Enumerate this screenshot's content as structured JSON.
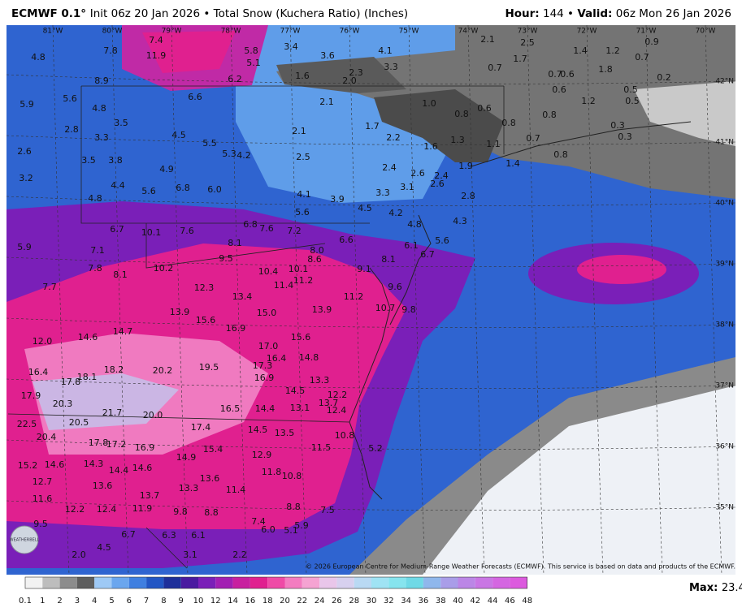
{
  "header": {
    "model": "ECMWF 0.1°",
    "init": "Init 06z 20 Jan 2026",
    "product": "Total Snow (Kuchera Ratio) (Inches)",
    "hour_label": "Hour:",
    "hour": "144",
    "valid_label": "Valid:",
    "valid": "06z Mon 26 Jan 2026"
  },
  "map": {
    "longitude_labels": [
      "81°W",
      "80°W",
      "79°W",
      "78°W",
      "77°W",
      "76°W",
      "75°W",
      "74°W",
      "73°W",
      "72°W",
      "71°W",
      "70°W"
    ],
    "latitude_labels": [
      "42°N",
      "41°N",
      "40°N",
      "39°N",
      "38°N",
      "37°N",
      "36°N",
      "35°N"
    ],
    "point_labels": [
      "4.8",
      "7.8",
      "7.4",
      "11.9",
      "8.9",
      "5.8",
      "5.1",
      "6.2",
      "3.4",
      "3.6",
      "4.1",
      "3.3",
      "1.6",
      "2.3",
      "2.0",
      "2.1",
      "2.5",
      "1.4",
      "1.2",
      "0.9",
      "0.7",
      "1.7",
      "0.7",
      "0.7",
      "0.6",
      "1.8",
      "0.2",
      "5.9",
      "5.6",
      "4.8",
      "6.6",
      "2.1",
      "1.0",
      "0.8",
      "0.6",
      "0.6",
      "1.2",
      "0.5",
      "0.8",
      "0.5",
      "3.5",
      "2.8",
      "3.3",
      "4.5",
      "2.1",
      "1.7",
      "0.8",
      "0.3",
      "2.6",
      "5.5",
      "5.3",
      "4.2",
      "2.5",
      "2.2",
      "1.6",
      "1.3",
      "1.1",
      "0.7",
      "0.8",
      "0.3",
      "3.5",
      "3.8",
      "4.9",
      "2.4",
      "2.6",
      "2.4",
      "1.9",
      "1.4",
      "3.2",
      "4.4",
      "5.6",
      "6.8",
      "6.0",
      "3.1",
      "2.6",
      "4.1",
      "3.9",
      "3.3",
      "2.8",
      "4.8",
      "4.5",
      "5.6",
      "4.2",
      "4.3",
      "4.8",
      "6.7",
      "10.1",
      "7.6",
      "6.8",
      "7.6",
      "7.2",
      "6.6",
      "5.6",
      "6.1",
      "5.9",
      "7.1",
      "8.1",
      "8.0",
      "6.7",
      "9.5",
      "8.6",
      "8.1",
      "7.8",
      "10.2",
      "8.1",
      "10.4",
      "10.1",
      "9.1",
      "11.2",
      "7.7",
      "12.3",
      "11.4",
      "9.6",
      "13.4",
      "11.2",
      "10.7",
      "9.8",
      "13.9",
      "15.0",
      "13.9",
      "15.6",
      "16.9",
      "14.7",
      "14.6",
      "12.0",
      "15.6",
      "17.0",
      "16.4",
      "14.8",
      "17.3",
      "16.4",
      "18.2",
      "20.2",
      "19.5",
      "18.1",
      "17.8",
      "16.9",
      "13.3",
      "14.5",
      "17.9",
      "20.3",
      "13.1",
      "13.7",
      "12.2",
      "16.5",
      "14.4",
      "12.4",
      "21.7",
      "20.0",
      "22.5",
      "20.5",
      "17.4",
      "14.5",
      "13.5",
      "10.8",
      "20.4",
      "17.8",
      "17.2",
      "16.9",
      "15.4",
      "11.5",
      "5.2",
      "14.9",
      "12.9",
      "15.2",
      "14.6",
      "14.3",
      "14.4",
      "14.6",
      "11.8",
      "10.8",
      "13.6",
      "12.7",
      "13.6",
      "13.3",
      "11.4",
      "13.7",
      "11.6",
      "12.2",
      "12.4",
      "11.9",
      "9.8",
      "8.8",
      "8.8",
      "7.5",
      "7.4",
      "9.5",
      "6.0",
      "5.9",
      "5.1",
      "6.7",
      "6.3",
      "6.1",
      "4.5",
      "2.0",
      "3.1",
      "2.2"
    ],
    "credit": "© 2026 European Centre for Medium-Range Weather Forecasts (ECMWF). This service is based on data and products of the ECMWF.",
    "logo": "WEATHERBELL"
  },
  "colorbar": {
    "labels": [
      "0.1",
      "1",
      "2",
      "3",
      "4",
      "5",
      "6",
      "7",
      "8",
      "9",
      "10",
      "12",
      "14",
      "16",
      "18",
      "20",
      "22",
      "24",
      "26",
      "28",
      "30",
      "32",
      "34",
      "36",
      "38",
      "40",
      "42",
      "44",
      "46",
      "48"
    ],
    "colors": [
      "#f2f2f2",
      "#bdbdbd",
      "#8c8c8c",
      "#5e5e5e",
      "#9ec9f5",
      "#6aa6ee",
      "#3f7fe0",
      "#2156c4",
      "#1d2f9a",
      "#4a1aa0",
      "#7a1fb8",
      "#a21fb2",
      "#c8209f",
      "#e0208f",
      "#ef4aa6",
      "#f37cc0",
      "#f5a3d2",
      "#e9c6ea",
      "#d7d0ef",
      "#b9d9f3",
      "#9fe3f4",
      "#86e4ee",
      "#6fd9e6",
      "#8fb7ec",
      "#a99de8",
      "#bb86e6",
      "#c976e4",
      "#d466e1",
      "#dc5ade"
    ],
    "max_label": "Max:",
    "max": "23.4"
  }
}
